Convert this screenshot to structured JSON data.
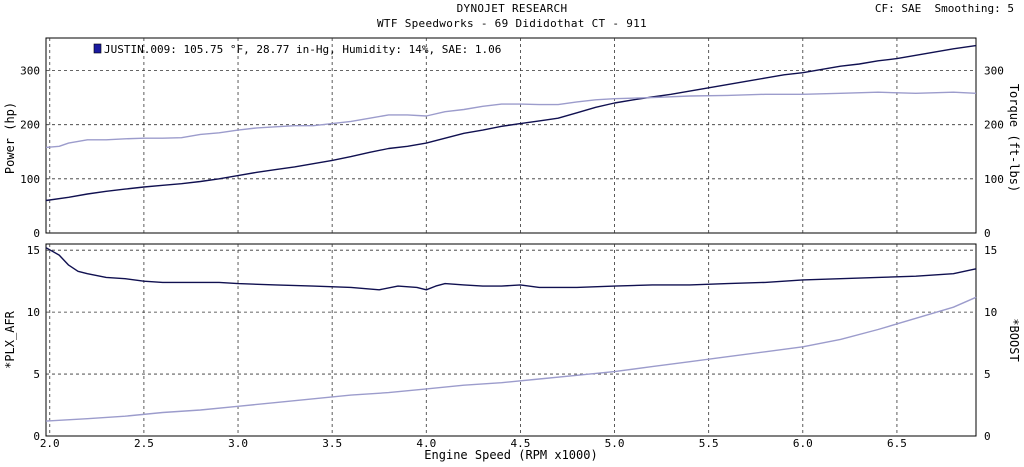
{
  "header": {
    "title": "DYNOJET RESEARCH",
    "subtitle": "WTF Speedworks - 69 Dididothat CT - 911",
    "cf_label": "CF: SAE",
    "smoothing_label": "Smoothing: 5"
  },
  "legend": {
    "run_label": "JUSTIN.009: 105.75 °F, 28.77 in-Hg, Humidity: 14%, SAE: 1.06",
    "swatch_color": "#1a1aa0"
  },
  "colors": {
    "power": "#101050",
    "torque": "#9c9ccc",
    "afr": "#101050",
    "boost": "#9c9ccc",
    "grid": "#333333",
    "background": "#ffffff"
  },
  "chart_data": [
    {
      "type": "line",
      "xlabel": "Engine Speed (RPM x1000)",
      "ylabel": "Power (hp)",
      "y2label": "Torque (ft-lbs)",
      "xlim": [
        1.98,
        6.92
      ],
      "ylim": [
        0,
        360
      ],
      "y2lim": [
        0,
        360
      ],
      "x_ticks": [
        2.0,
        2.5,
        3.0,
        3.5,
        4.0,
        4.5,
        5.0,
        5.5,
        6.0,
        6.5
      ],
      "x_tick_labels": [
        "2.0",
        "2.5",
        "3.0",
        "3.5",
        "4.0",
        "4.5",
        "5.0",
        "5.5",
        "6.0",
        "6.5"
      ],
      "y_ticks": [
        0,
        100,
        200,
        300
      ],
      "y_tick_labels": [
        "0",
        "100",
        "200",
        "300"
      ],
      "y2_ticks": [
        0,
        100,
        200,
        300
      ],
      "y2_tick_labels": [
        "0",
        "100",
        "200",
        "300"
      ],
      "grid": true,
      "series": [
        {
          "name": "Power",
          "axis": "left",
          "x": [
            1.98,
            2.1,
            2.2,
            2.3,
            2.4,
            2.5,
            2.6,
            2.7,
            2.8,
            2.9,
            3.0,
            3.1,
            3.2,
            3.3,
            3.4,
            3.5,
            3.6,
            3.7,
            3.8,
            3.9,
            4.0,
            4.1,
            4.2,
            4.3,
            4.4,
            4.5,
            4.6,
            4.7,
            4.8,
            4.9,
            5.0,
            5.1,
            5.2,
            5.3,
            5.4,
            5.5,
            5.6,
            5.7,
            5.8,
            5.9,
            6.0,
            6.1,
            6.2,
            6.3,
            6.4,
            6.5,
            6.6,
            6.7,
            6.8,
            6.92
          ],
          "values": [
            60,
            66,
            72,
            77,
            81,
            85,
            88,
            91,
            95,
            100,
            106,
            112,
            117,
            122,
            128,
            134,
            141,
            149,
            156,
            160,
            166,
            175,
            184,
            190,
            197,
            202,
            207,
            212,
            222,
            232,
            240,
            246,
            251,
            256,
            262,
            268,
            274,
            280,
            286,
            292,
            296,
            302,
            308,
            312,
            318,
            322,
            328,
            334,
            340,
            346
          ]
        },
        {
          "name": "Torque",
          "axis": "right",
          "x": [
            1.98,
            2.05,
            2.1,
            2.2,
            2.3,
            2.4,
            2.5,
            2.6,
            2.7,
            2.8,
            2.9,
            3.0,
            3.1,
            3.2,
            3.3,
            3.4,
            3.5,
            3.6,
            3.7,
            3.8,
            3.9,
            4.0,
            4.1,
            4.2,
            4.3,
            4.4,
            4.5,
            4.6,
            4.7,
            4.8,
            4.9,
            5.0,
            5.2,
            5.4,
            5.6,
            5.8,
            6.0,
            6.2,
            6.4,
            6.6,
            6.8,
            6.92
          ],
          "values": [
            158,
            160,
            166,
            172,
            172,
            174,
            175,
            175,
            176,
            182,
            185,
            190,
            194,
            196,
            198,
            198,
            202,
            206,
            212,
            218,
            218,
            216,
            224,
            228,
            234,
            238,
            238,
            237,
            237,
            242,
            246,
            248,
            250,
            253,
            254,
            256,
            256,
            258,
            260,
            258,
            260,
            258
          ]
        }
      ]
    },
    {
      "type": "line",
      "xlabel": "Engine Speed (RPM x1000)",
      "ylabel": "*PLX_AFR",
      "y2label": "*BOOST",
      "xlim": [
        1.98,
        6.92
      ],
      "ylim": [
        0,
        15.5
      ],
      "y2lim": [
        0,
        15.5
      ],
      "x_ticks": [
        2.0,
        2.5,
        3.0,
        3.5,
        4.0,
        4.5,
        5.0,
        5.5,
        6.0,
        6.5
      ],
      "x_tick_labels": [
        "2.0",
        "2.5",
        "3.0",
        "3.5",
        "4.0",
        "4.5",
        "5.0",
        "5.5",
        "6.0",
        "6.5"
      ],
      "y_ticks": [
        0,
        5,
        10,
        15
      ],
      "y_tick_labels": [
        "0",
        "5",
        "10",
        "15"
      ],
      "y2_ticks": [
        0,
        5,
        10,
        15
      ],
      "y2_tick_labels": [
        "0",
        "5",
        "10",
        "15"
      ],
      "grid": true,
      "series": [
        {
          "name": "*PLX_AFR",
          "axis": "left",
          "x": [
            1.98,
            2.05,
            2.1,
            2.15,
            2.2,
            2.3,
            2.4,
            2.5,
            2.6,
            2.7,
            2.8,
            2.9,
            3.0,
            3.2,
            3.4,
            3.6,
            3.75,
            3.85,
            3.95,
            4.0,
            4.05,
            4.1,
            4.2,
            4.3,
            4.4,
            4.5,
            4.6,
            4.7,
            4.8,
            5.0,
            5.2,
            5.4,
            5.6,
            5.8,
            6.0,
            6.2,
            6.4,
            6.6,
            6.8,
            6.92
          ],
          "values": [
            15.2,
            14.6,
            13.8,
            13.3,
            13.1,
            12.8,
            12.7,
            12.5,
            12.4,
            12.4,
            12.4,
            12.4,
            12.3,
            12.2,
            12.1,
            12.0,
            11.8,
            12.1,
            12.0,
            11.8,
            12.1,
            12.3,
            12.2,
            12.1,
            12.1,
            12.2,
            12.0,
            12.0,
            12.0,
            12.1,
            12.2,
            12.2,
            12.3,
            12.4,
            12.6,
            12.7,
            12.8,
            12.9,
            13.1,
            13.5
          ]
        },
        {
          "name": "*BOOST",
          "axis": "right",
          "x": [
            1.98,
            2.2,
            2.4,
            2.6,
            2.8,
            3.0,
            3.2,
            3.4,
            3.6,
            3.8,
            4.0,
            4.2,
            4.4,
            4.6,
            4.8,
            5.0,
            5.2,
            5.4,
            5.6,
            5.8,
            6.0,
            6.2,
            6.4,
            6.6,
            6.8,
            6.92
          ],
          "values": [
            1.2,
            1.4,
            1.6,
            1.9,
            2.1,
            2.4,
            2.7,
            3.0,
            3.3,
            3.5,
            3.8,
            4.1,
            4.3,
            4.6,
            4.9,
            5.2,
            5.6,
            6.0,
            6.4,
            6.8,
            7.2,
            7.8,
            8.6,
            9.5,
            10.4,
            11.2
          ]
        }
      ]
    }
  ]
}
